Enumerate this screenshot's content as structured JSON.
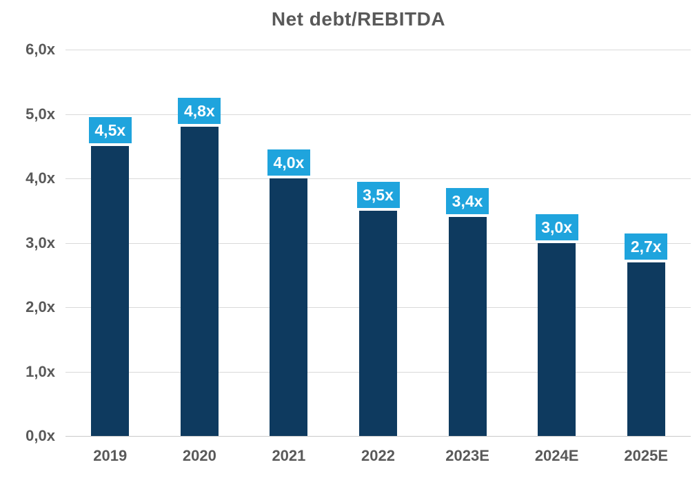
{
  "chart_data": {
    "type": "bar",
    "title": "Net debt/REBITDA",
    "categories": [
      "2019",
      "2020",
      "2021",
      "2022",
      "2023E",
      "2024E",
      "2025E"
    ],
    "values": [
      4.5,
      4.8,
      4.0,
      3.5,
      3.4,
      3.0,
      2.7
    ],
    "value_labels": [
      "4,5x",
      "4,8x",
      "4,0x",
      "3,5x",
      "3,4x",
      "3,0x",
      "2,7x"
    ],
    "y_tick_labels": [
      "0,0x",
      "1,0x",
      "2,0x",
      "3,0x",
      "4,0x",
      "5,0x",
      "6,0x"
    ],
    "ylim": [
      0,
      6
    ],
    "xlabel": "",
    "ylabel": "",
    "grid": true,
    "legend": "none",
    "colors": {
      "bar": "#0e3a5f",
      "label_badge_bg": "#1fa4dd",
      "label_badge_text": "#ffffff",
      "axis_text": "#595959",
      "title_text": "#595959",
      "gridline": "#d9d9d9"
    }
  }
}
